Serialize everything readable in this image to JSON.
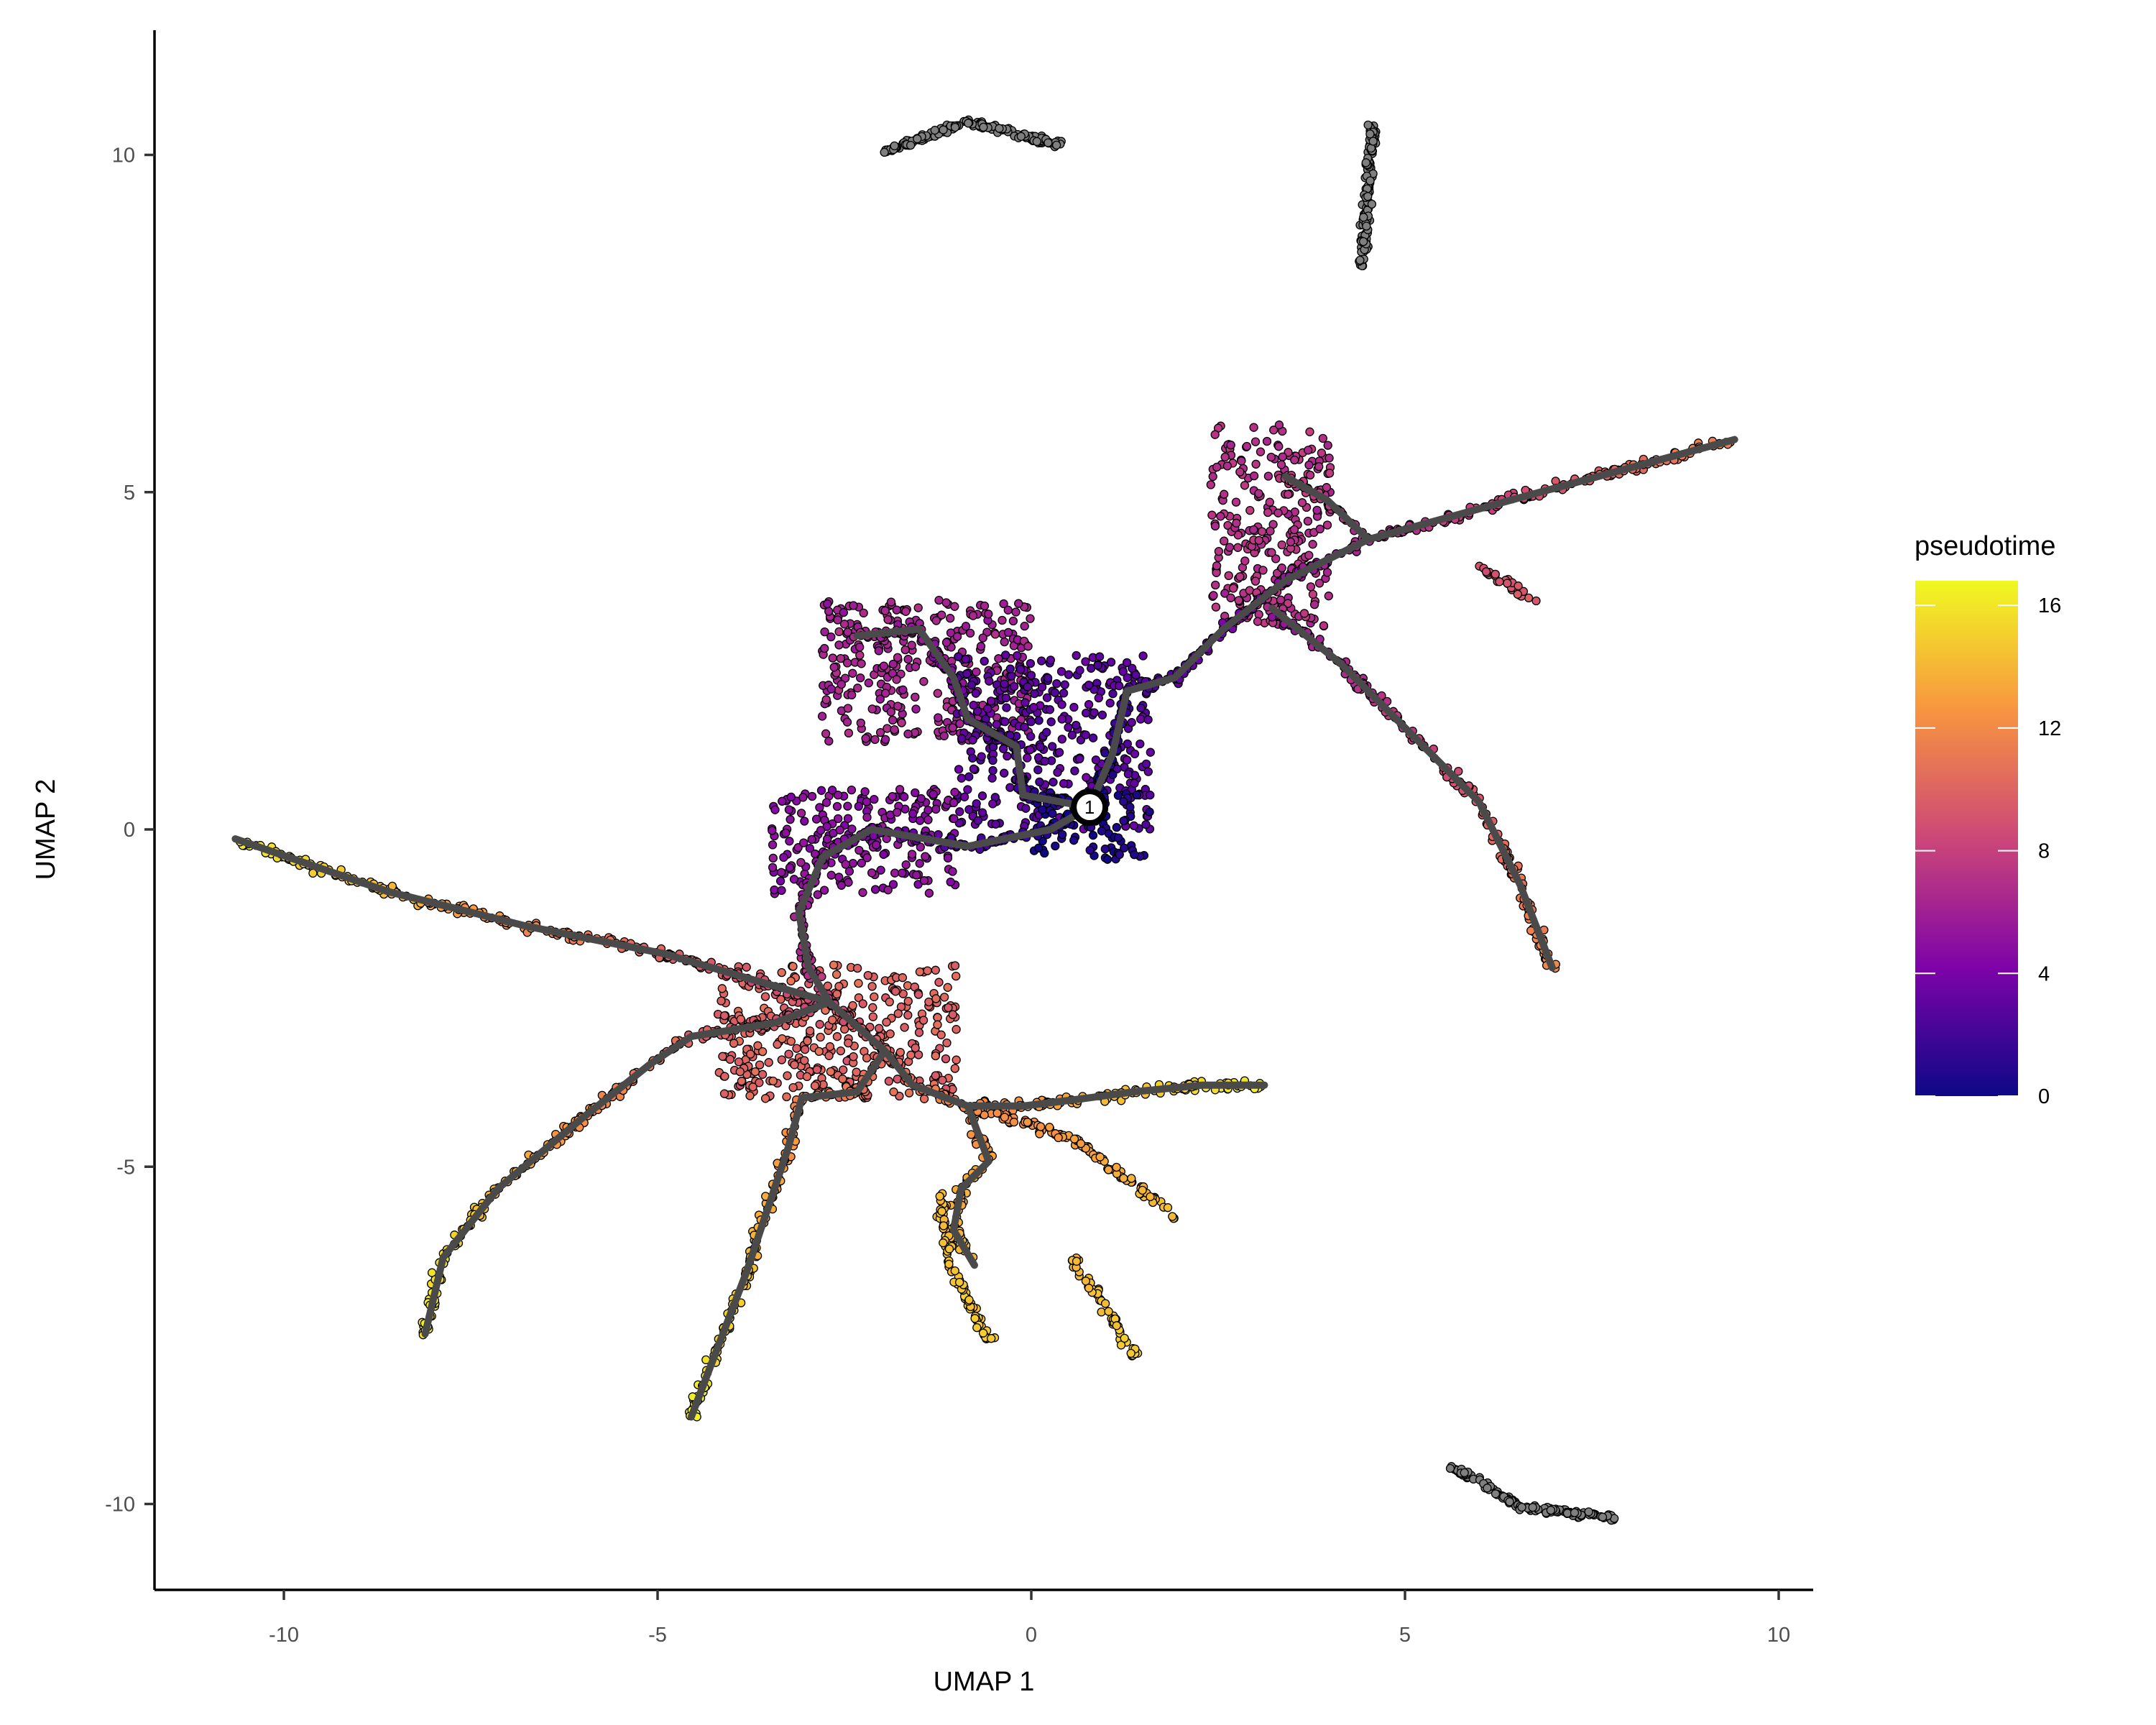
{
  "chart_data": {
    "type": "scatter",
    "title": "",
    "xlabel": "UMAP 1",
    "ylabel": "UMAP 2",
    "xlim": [
      -11.7,
      10.5
    ],
    "ylim": [
      -11.3,
      11.8
    ],
    "x_ticks": [
      -10,
      -5,
      0,
      5,
      10
    ],
    "y_ticks": [
      -10,
      -5,
      0,
      5,
      10
    ],
    "x_tick_labels": [
      "-10",
      "-5",
      "0",
      "5",
      "10"
    ],
    "y_tick_labels": [
      "-10",
      "-5",
      "0",
      "5",
      "10"
    ],
    "grid": false,
    "colorbar": {
      "title": "pseudotime",
      "colormap": "plasma",
      "range": [
        0,
        16.8
      ],
      "ticks": [
        0,
        4,
        8,
        12,
        16
      ],
      "tick_labels": [
        "0",
        "4",
        "8",
        "12",
        "16"
      ],
      "placement": "right"
    },
    "colors": {
      "trajectory": "#4a4a4a",
      "unassigned_cells": "#7f7f7f",
      "point_outline": "#000000",
      "plasma_stops": [
        "#0d0887",
        "#7e03a8",
        "#cc4778",
        "#f89540",
        "#f0f921"
      ]
    },
    "root_node": {
      "label": "1",
      "x": 0.78,
      "y": 0.33
    },
    "trajectory": [
      {
        "points": [
          [
            0.78,
            0.33,
            0
          ],
          [
            -0.11,
            0.51,
            1.5
          ],
          [
            -0.2,
            1.23,
            2.5
          ],
          [
            -0.85,
            1.64,
            3.5
          ],
          [
            -1.04,
            2.25,
            4.5
          ],
          [
            -1.5,
            2.97,
            5.5
          ],
          [
            -2.33,
            2.87,
            6.5
          ]
        ]
      },
      {
        "points": [
          [
            0.78,
            0.33,
            0
          ],
          [
            1.09,
            1.13,
            1
          ],
          [
            1.28,
            2.05,
            2
          ],
          [
            1.92,
            2.25,
            3
          ],
          [
            2.57,
            2.97,
            4
          ],
          [
            3.4,
            3.69,
            5
          ],
          [
            4.51,
            4.3,
            6.5
          ],
          [
            6.54,
            4.92,
            8.5
          ],
          [
            9.41,
            5.78,
            12
          ]
        ]
      },
      {
        "points": [
          [
            4.51,
            4.3,
            6.5
          ],
          [
            3.96,
            4.88,
            7.5
          ],
          [
            3.4,
            5.23,
            8
          ]
        ]
      },
      {
        "points": [
          [
            3.22,
            3.28,
            5
          ],
          [
            4.14,
            2.46,
            6.5
          ],
          [
            5.25,
            1.23,
            8
          ],
          [
            5.99,
            0.41,
            9.5
          ],
          [
            6.54,
            -0.82,
            11
          ],
          [
            6.97,
            -2.05,
            12
          ]
        ]
      },
      {
        "points": [
          [
            0.78,
            0.33,
            0
          ],
          [
            0.26,
            0.0,
            1
          ],
          [
            -0.85,
            -0.25,
            2.5
          ],
          [
            -2.14,
            0.0,
            4
          ],
          [
            -2.79,
            -0.41,
            5
          ],
          [
            -3.11,
            -1.23,
            6
          ],
          [
            -2.98,
            -2.05,
            7
          ],
          [
            -2.7,
            -2.56,
            8
          ]
        ]
      },
      {
        "points": [
          [
            -2.7,
            -2.56,
            8
          ],
          [
            -4.92,
            -1.84,
            10
          ],
          [
            -6.77,
            -1.43,
            12
          ],
          [
            -8.61,
            -0.92,
            14
          ],
          [
            -10.65,
            -0.14,
            16.5
          ]
        ]
      },
      {
        "points": [
          [
            -2.7,
            -2.56,
            8
          ],
          [
            -3.44,
            -2.87,
            9
          ],
          [
            -4.55,
            -3.07,
            10
          ],
          [
            -5.1,
            -3.48,
            11
          ],
          [
            -6.03,
            -4.3,
            12.5
          ],
          [
            -7.14,
            -5.33,
            14
          ],
          [
            -7.87,
            -6.35,
            15.5
          ],
          [
            -8.11,
            -7.48,
            16
          ]
        ]
      },
      {
        "points": [
          [
            -2.7,
            -2.56,
            8
          ],
          [
            -1.96,
            -3.28,
            10
          ],
          [
            -2.33,
            -3.89,
            11
          ],
          [
            -3.07,
            -3.98,
            11.5
          ],
          [
            -3.25,
            -4.71,
            12.5
          ],
          [
            -3.81,
            -6.56,
            14.5
          ],
          [
            -4.55,
            -8.71,
            16.5
          ]
        ]
      },
      {
        "points": [
          [
            -1.96,
            -3.28,
            10
          ],
          [
            -1.59,
            -3.79,
            11
          ],
          [
            -0.85,
            -4.1,
            12
          ],
          [
            -0.11,
            -4.1,
            12.5
          ],
          [
            0.63,
            -4.0,
            13.5
          ],
          [
            1.37,
            -3.89,
            14.5
          ],
          [
            2.29,
            -3.79,
            15.5
          ],
          [
            3.12,
            -3.79,
            16.5
          ]
        ]
      },
      {
        "points": [
          [
            -0.85,
            -4.1,
            12
          ],
          [
            -0.57,
            -4.92,
            13
          ],
          [
            -0.94,
            -5.33,
            13.5
          ],
          [
            -1.04,
            -5.94,
            14
          ],
          [
            -0.76,
            -6.46,
            14.5
          ]
        ]
      }
    ],
    "cell_branches": [
      {
        "points": [
          [
            5.99,
            3.89,
            9
          ],
          [
            6.73,
            3.38,
            9.5
          ]
        ]
      },
      {
        "points": [
          [
            -0.85,
            -4.1,
            12
          ],
          [
            0.6,
            -4.6,
            13
          ],
          [
            1.92,
            -5.74,
            14.5
          ]
        ]
      },
      {
        "points": [
          [
            -1.22,
            -5.33,
            14
          ],
          [
            -1.1,
            -6.4,
            14.5
          ],
          [
            -0.57,
            -7.58,
            15
          ]
        ]
      },
      {
        "points": [
          [
            0.54,
            -6.35,
            14
          ],
          [
            0.95,
            -7.0,
            14.5
          ],
          [
            1.37,
            -7.79,
            15
          ]
        ]
      }
    ],
    "cell_regions": [
      {
        "x": [
          -2.8,
          0.0
        ],
        "y": [
          1.3,
          3.4
        ],
        "pseudotime": 6.2
      },
      {
        "x": [
          -1.0,
          1.6
        ],
        "y": [
          0.0,
          2.6
        ],
        "pseudotime": 3.0
      },
      {
        "x": [
          0.0,
          1.6
        ],
        "y": [
          -0.45,
          0.55
        ],
        "pseudotime": 0.6
      },
      {
        "x": [
          -3.5,
          -1.0
        ],
        "y": [
          -1.0,
          0.6
        ],
        "pseudotime": 5.0
      },
      {
        "x": [
          2.4,
          4.0
        ],
        "y": [
          3.0,
          6.0
        ],
        "pseudotime": 7.0
      },
      {
        "x": [
          -4.2,
          -1.0
        ],
        "y": [
          -4.0,
          -2.0
        ],
        "pseudotime": 10.0
      }
    ],
    "unassigned_clusters": [
      {
        "points": [
          [
            -1.96,
            10.04
          ],
          [
            -0.85,
            10.5
          ],
          [
            0.41,
            10.14
          ]
        ]
      },
      {
        "points": [
          [
            4.57,
            10.45
          ],
          [
            4.5,
            9.4
          ],
          [
            4.42,
            8.3
          ]
        ]
      },
      {
        "points": [
          [
            5.62,
            -9.43
          ],
          [
            6.54,
            -10.04
          ],
          [
            7.8,
            -10.2
          ]
        ]
      }
    ]
  }
}
